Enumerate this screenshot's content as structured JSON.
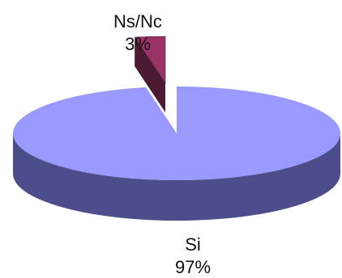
{
  "chart_data": {
    "type": "pie",
    "style": "3d-exploded",
    "title": "",
    "slices": [
      {
        "label": "Si",
        "value": 97,
        "percent_label": "97%",
        "color": "#9999ff",
        "side_color": "#4d4d8c"
      },
      {
        "label": "Ns/Nc",
        "value": 3,
        "percent_label": "3%",
        "color": "#993366",
        "side_color": "#4d1a33",
        "exploded": true
      }
    ],
    "legend": "none"
  }
}
